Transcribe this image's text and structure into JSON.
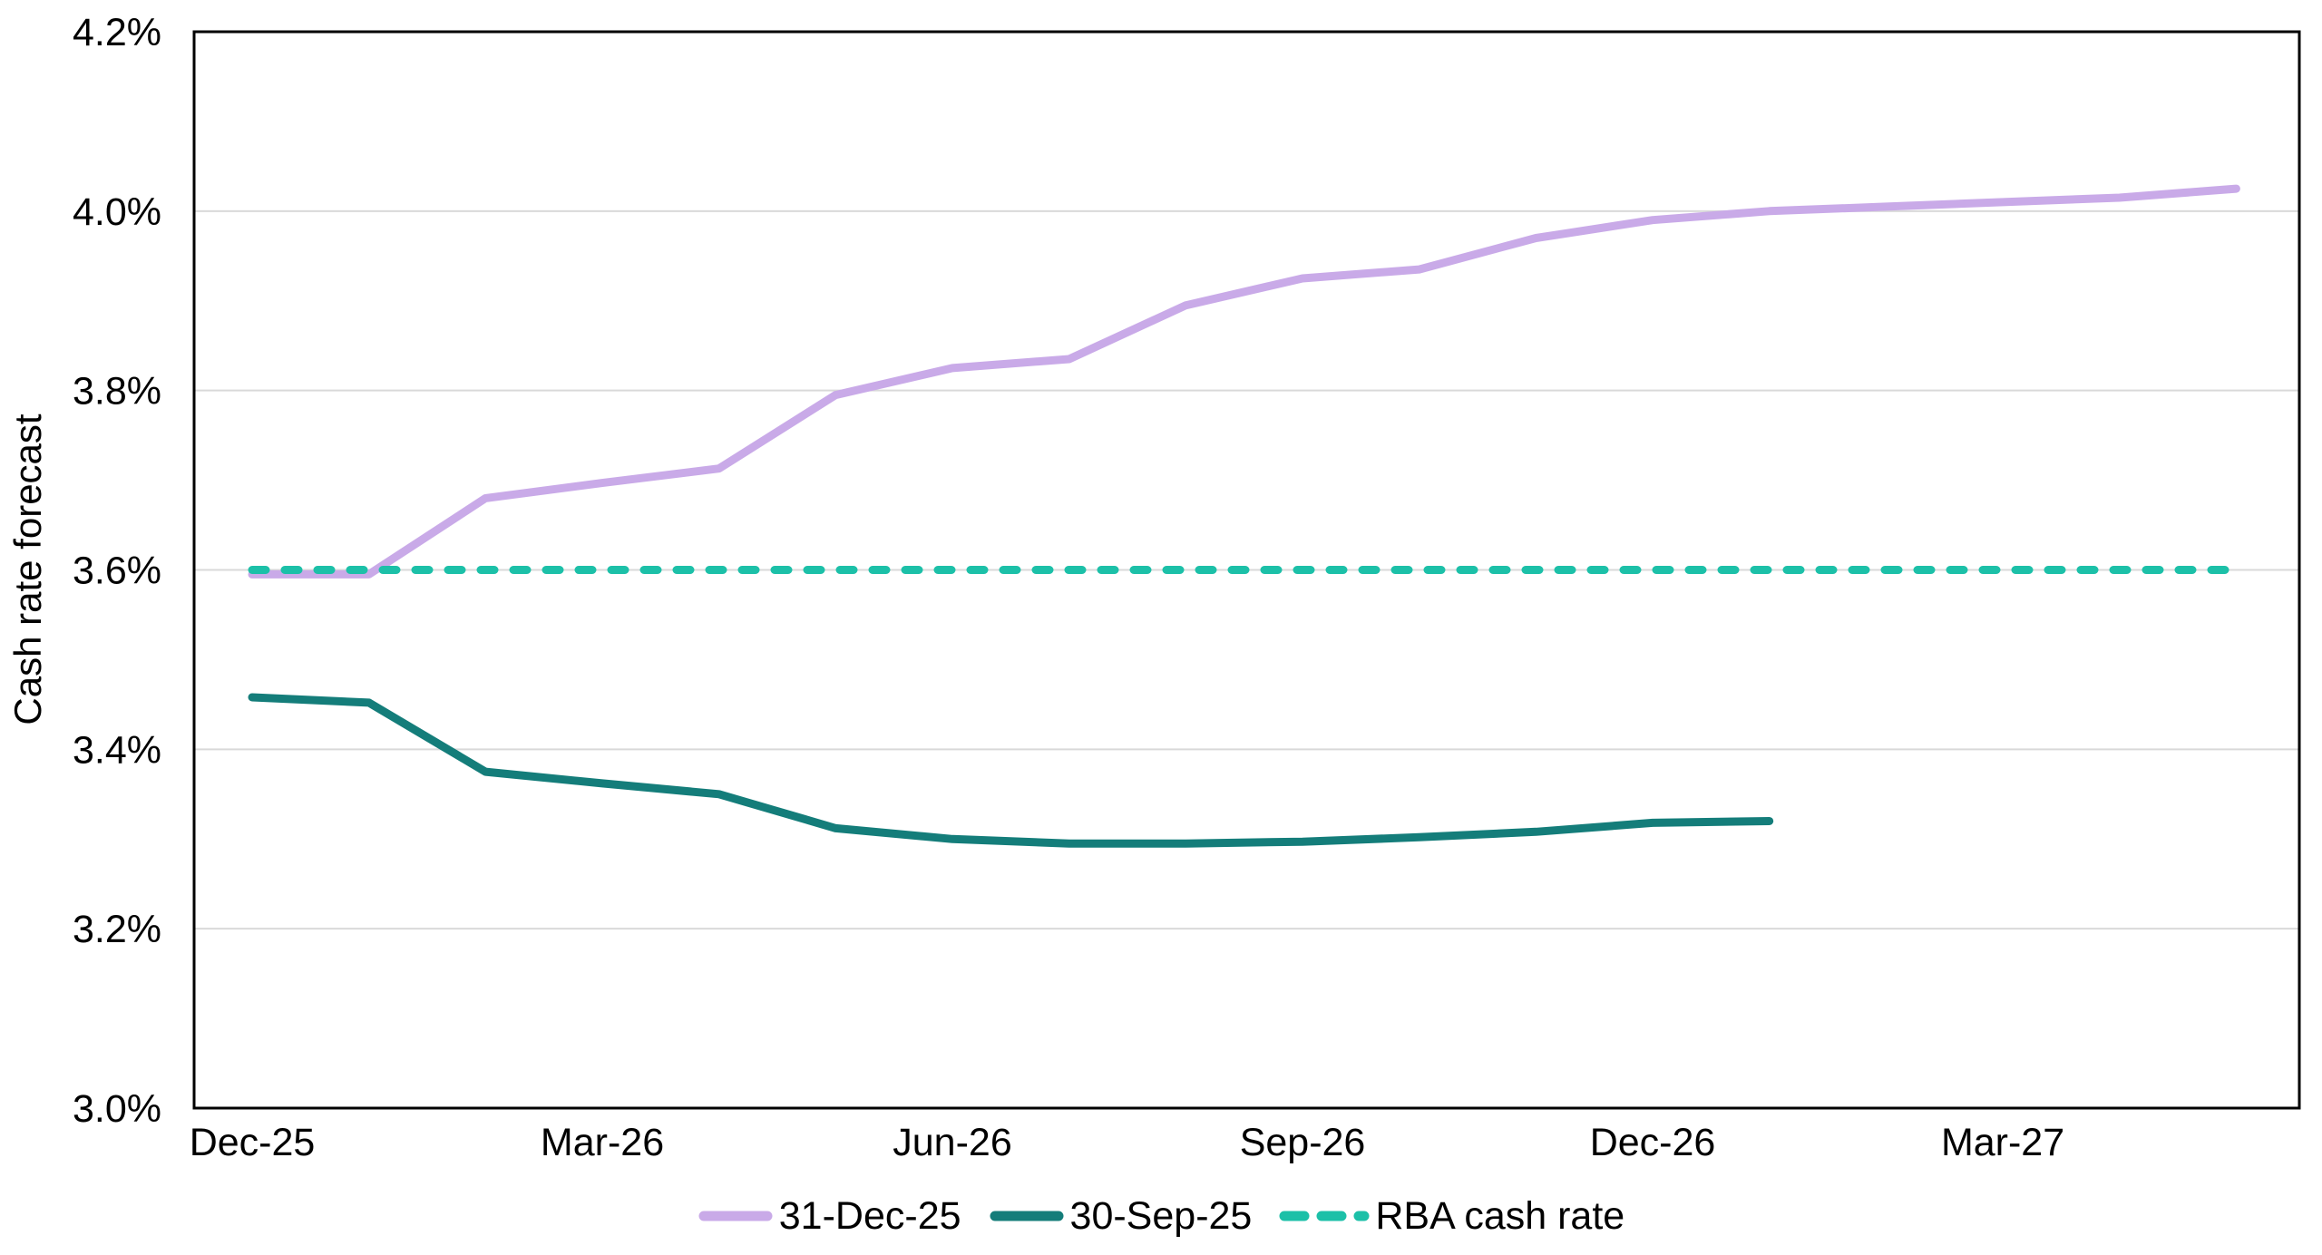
{
  "chart_data": {
    "type": "line",
    "title": "",
    "xlabel": "",
    "ylabel": "Cash rate forecast",
    "ylim": [
      3.0,
      4.2
    ],
    "grid": "horizontal",
    "legend_position": "bottom",
    "x": [
      "Dec-25",
      "Jan-26",
      "Feb-26",
      "Mar-26",
      "Apr-26",
      "May-26",
      "Jun-26",
      "Jul-26",
      "Aug-26",
      "Sep-26",
      "Oct-26",
      "Nov-26",
      "Dec-26",
      "Jan-27",
      "Feb-27",
      "Mar-27",
      "Apr-27",
      "May-27"
    ],
    "x_ticks": [
      {
        "index": 0,
        "label": "Dec-25"
      },
      {
        "index": 3,
        "label": "Mar-26"
      },
      {
        "index": 6,
        "label": "Jun-26"
      },
      {
        "index": 9,
        "label": "Sep-26"
      },
      {
        "index": 12,
        "label": "Dec-26"
      },
      {
        "index": 15,
        "label": "Mar-27"
      }
    ],
    "y_ticks": [
      {
        "value": 3.0,
        "label": "3.0%"
      },
      {
        "value": 3.2,
        "label": "3.2%"
      },
      {
        "value": 3.4,
        "label": "3.4%"
      },
      {
        "value": 3.6,
        "label": "3.6%"
      },
      {
        "value": 3.8,
        "label": "3.8%"
      },
      {
        "value": 4.0,
        "label": "4.0%"
      },
      {
        "value": 4.2,
        "label": "4.2%"
      }
    ],
    "series": [
      {
        "name": "31-Dec-25",
        "color": "#c9aae8",
        "style": "solid",
        "values": [
          3.595,
          3.595,
          3.68,
          3.697,
          3.713,
          3.795,
          3.825,
          3.835,
          3.895,
          3.925,
          3.935,
          3.97,
          3.99,
          4.0,
          4.005,
          4.01,
          4.015,
          4.025
        ]
      },
      {
        "name": "30-Sep-25",
        "color": "#147d7a",
        "style": "solid",
        "values": [
          3.458,
          3.452,
          3.375,
          3.362,
          3.35,
          3.312,
          3.3,
          3.295,
          3.295,
          3.297,
          3.302,
          3.308,
          3.318,
          3.32
        ]
      },
      {
        "name": "RBA cash rate",
        "color": "#1cc0a8",
        "style": "dashed",
        "values": [
          3.6,
          3.6,
          3.6,
          3.6,
          3.6,
          3.6,
          3.6,
          3.6,
          3.6,
          3.6,
          3.6,
          3.6,
          3.6,
          3.6,
          3.6,
          3.6,
          3.6,
          3.6
        ]
      }
    ],
    "colors": {
      "gridline": "#d9d9d9",
      "axis_border": "#000000",
      "text": "#000000",
      "background": "#ffffff"
    }
  }
}
